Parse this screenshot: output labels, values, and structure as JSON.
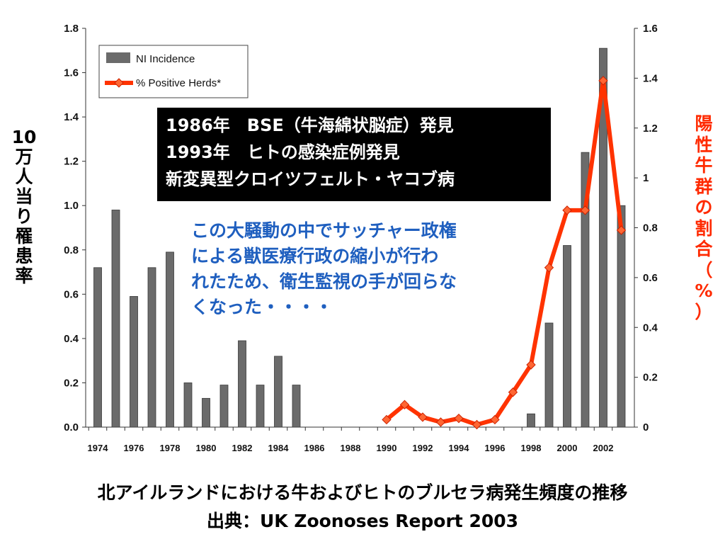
{
  "chart_data": {
    "type": "bar+line",
    "left_axis": {
      "label": "10万人当り罹患率",
      "ylim": [
        0,
        1.8
      ],
      "ticks": [
        "0.0",
        "0.2",
        "0.4",
        "0.6",
        "0.8",
        "1.0",
        "1.2",
        "1.4",
        "1.6",
        "1.8"
      ]
    },
    "right_axis": {
      "label": "陽性牛群の割合（%）",
      "ylim": [
        0,
        1.6
      ],
      "ticks": [
        "0",
        "0.2",
        "0.4",
        "0.6",
        "0.8",
        "1",
        "1.2",
        "1.4",
        "1.6"
      ]
    },
    "x_tick_labels": [
      "1974",
      "1976",
      "1978",
      "1980",
      "1982",
      "1984",
      "1986",
      "1988",
      "1990",
      "1992",
      "1994",
      "1996",
      "1998",
      "2000",
      "2002"
    ],
    "bar_series": {
      "name": "NI Incidence",
      "color": "#6b6b6b",
      "points": [
        {
          "year": 1974,
          "value": 0.72
        },
        {
          "year": 1975,
          "value": 0.98
        },
        {
          "year": 1976,
          "value": 0.59
        },
        {
          "year": 1977,
          "value": 0.72
        },
        {
          "year": 1978,
          "value": 0.79
        },
        {
          "year": 1979,
          "value": 0.2
        },
        {
          "year": 1980,
          "value": 0.13
        },
        {
          "year": 1981,
          "value": 0.19
        },
        {
          "year": 1982,
          "value": 0.39
        },
        {
          "year": 1983,
          "value": 0.19
        },
        {
          "year": 1984,
          "value": 0.32
        },
        {
          "year": 1985,
          "value": 0.19
        },
        {
          "year": 1998,
          "value": 0.06
        },
        {
          "year": 1999,
          "value": 0.47
        },
        {
          "year": 2000,
          "value": 0.82
        },
        {
          "year": 2001,
          "value": 1.24
        },
        {
          "year": 2002,
          "value": 1.71
        },
        {
          "year": 2003,
          "value": 1.0
        }
      ]
    },
    "line_series": {
      "name": "% Positive Herds*",
      "color": "#ff3300",
      "points": [
        {
          "year": 1990,
          "value": 0.03
        },
        {
          "year": 1991,
          "value": 0.09
        },
        {
          "year": 1992,
          "value": 0.04
        },
        {
          "year": 1993,
          "value": 0.02
        },
        {
          "year": 1994,
          "value": 0.035
        },
        {
          "year": 1995,
          "value": 0.01
        },
        {
          "year": 1996,
          "value": 0.03
        },
        {
          "year": 1997,
          "value": 0.14
        },
        {
          "year": 1998,
          "value": 0.25
        },
        {
          "year": 1999,
          "value": 0.64
        },
        {
          "year": 2000,
          "value": 0.87
        },
        {
          "year": 2001,
          "value": 0.87
        },
        {
          "year": 2002,
          "value": 1.39
        },
        {
          "year": 2003,
          "value": 0.79
        }
      ]
    }
  },
  "legend": {
    "bar_label": "NI Incidence",
    "line_label": "% Positive Herds*"
  },
  "annotation_box": {
    "line1": "1986年　BSE（牛海綿状脳症）発見",
    "line2": "1993年　ヒトの感染症例発見",
    "line3": "新変異型クロイツフェルト・ヤコブ病"
  },
  "annotation_note": {
    "line1": "この大騒動の中でサッチャー政権",
    "line2": "による獣医療行政の縮小が行わ",
    "line3": "れたため、衛生監視の手が回らな",
    "line4": "くなった・・・・"
  },
  "y_left_label_chars": [
    "10",
    "万",
    "人",
    "当",
    "り",
    "罹",
    "患",
    "率"
  ],
  "y_right_label_chars": [
    "陽",
    "性",
    "牛",
    "群",
    "の",
    "割",
    "合",
    "（",
    "%",
    "）"
  ],
  "caption": {
    "title": "北アイルランドにおける牛およびヒトのブルセラ病発生頻度の推移",
    "source": "出典：UK Zoonoses Report 2003"
  }
}
